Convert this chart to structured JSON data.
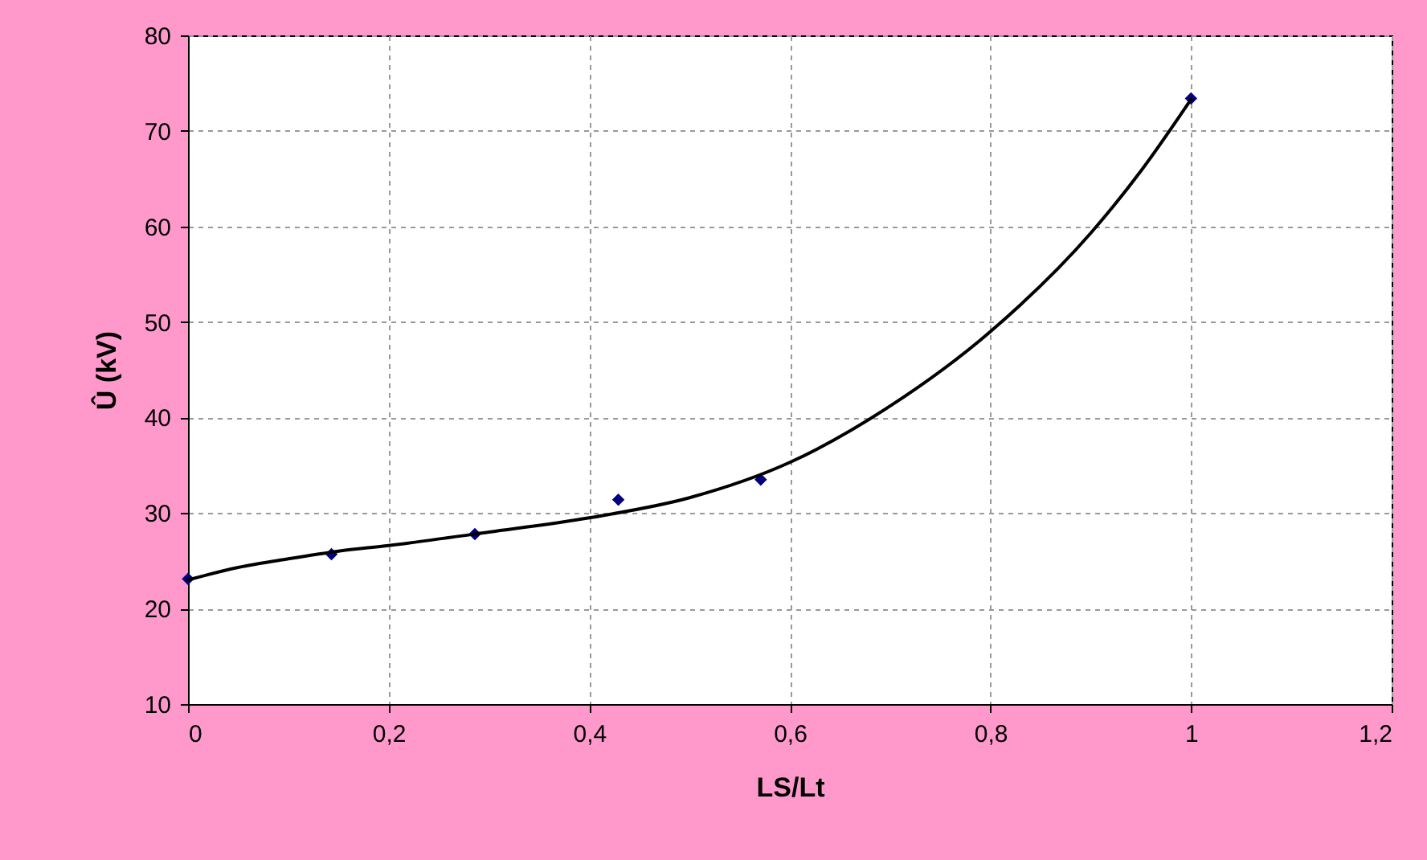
{
  "chart_data": {
    "type": "scatter",
    "xlabel": "LS/Lt",
    "ylabel": "Û (kV)",
    "xlim": [
      0,
      1.2
    ],
    "ylim": [
      10,
      80
    ],
    "xticks": [
      0,
      {
        "value": 0.2,
        "label": "0,2"
      },
      {
        "value": 0.4,
        "label": "0,4"
      },
      {
        "value": 0.6,
        "label": "0,6"
      },
      {
        "value": 0.8,
        "label": "0,8"
      },
      1,
      {
        "value": 1.2,
        "label": "1,2"
      }
    ],
    "yticks": [
      10,
      20,
      30,
      40,
      50,
      60,
      70,
      80
    ],
    "grid": true,
    "series": [
      {
        "type": "scatter",
        "color": "#000080",
        "marker": "diamond",
        "x": [
          0,
          0.143,
          0.286,
          0.429,
          0.571,
          1
        ],
        "values": [
          23.1,
          25.7,
          27.8,
          31.4,
          33.5,
          73.4
        ]
      },
      {
        "type": "line",
        "color": "#000000",
        "marker": "none",
        "line_style": "solid",
        "x": [
          0,
          0.05,
          0.1,
          0.15,
          0.2,
          0.3,
          0.4,
          0.5,
          0.6,
          0.7,
          0.8,
          0.9,
          0.95,
          1
        ],
        "values": [
          23,
          24.3,
          25.2,
          26,
          26.6,
          28,
          29.5,
          31.6,
          35.3,
          41.2,
          49,
          59.3,
          65.8,
          73.3
        ]
      }
    ]
  }
}
